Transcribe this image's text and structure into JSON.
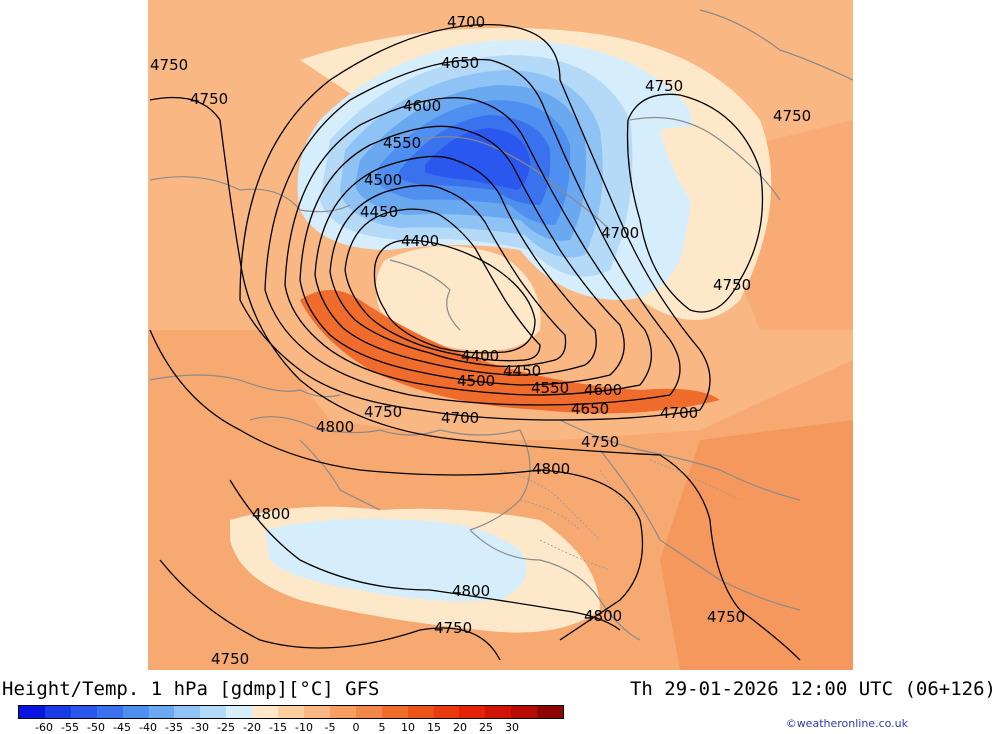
{
  "footer": {
    "title": "Height/Temp. 1 hPa [gdmp][°C] GFS",
    "time": "Th 29-01-2026 12:00 UTC (06+126)",
    "credit": "©weatheronline.co.uk"
  },
  "colorscale": {
    "colors": [
      "#0a14e0",
      "#1a3ae8",
      "#2a58ee",
      "#3a72ee",
      "#4f8ff0",
      "#6aa8f0",
      "#8fc3f5",
      "#b4daf8",
      "#d6eefc",
      "#fde9c9",
      "#fbcfa0",
      "#f9b784",
      "#f69e64",
      "#f3874a",
      "#ef6c2d",
      "#eb521a",
      "#e73a10",
      "#e32208",
      "#d11406",
      "#b80c04",
      "#8c0602"
    ],
    "labels": [
      "-60",
      "-55",
      "-50",
      "-45",
      "-40",
      "-35",
      "-30",
      "-25",
      "-20",
      "-15",
      "-10",
      "-5",
      "0",
      "5",
      "10",
      "15",
      "20",
      "25",
      "30"
    ]
  },
  "contour_labels": [
    {
      "text": "4700"
    },
    {
      "text": "4650"
    },
    {
      "text": "4750"
    },
    {
      "text": "4750"
    },
    {
      "text": "4750"
    },
    {
      "text": "4750"
    },
    {
      "text": "4600"
    },
    {
      "text": "4550"
    },
    {
      "text": "4500"
    },
    {
      "text": "4450"
    },
    {
      "text": "4400"
    },
    {
      "text": "4700"
    },
    {
      "text": "4750"
    },
    {
      "text": "4400"
    },
    {
      "text": "4450"
    },
    {
      "text": "4500"
    },
    {
      "text": "4550"
    },
    {
      "text": "4600"
    },
    {
      "text": "4650"
    },
    {
      "text": "4700"
    },
    {
      "text": "4750"
    },
    {
      "text": "4700"
    },
    {
      "text": "4800"
    },
    {
      "text": "4750"
    },
    {
      "text": "4800"
    },
    {
      "text": "4800"
    },
    {
      "text": "4800"
    },
    {
      "text": "4800"
    },
    {
      "text": "4750"
    },
    {
      "text": "4750"
    },
    {
      "text": "4750"
    }
  ]
}
